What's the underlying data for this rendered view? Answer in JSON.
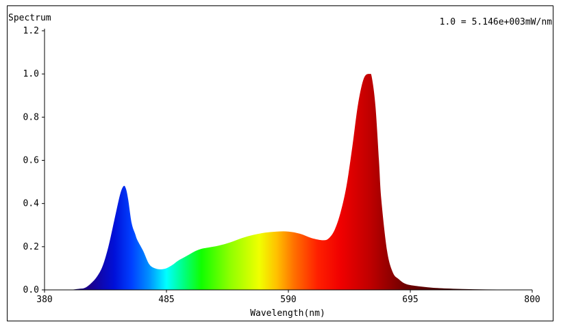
{
  "chart_data": {
    "type": "area",
    "title": "Spectrum",
    "annotation": "1.0 = 5.146e+003mW/nm",
    "xlabel": "Wavelength(nm)",
    "ylabel": "",
    "xlim": [
      380,
      800
    ],
    "ylim": [
      0,
      1.2
    ],
    "x_ticks": [
      380,
      485,
      590,
      695,
      800
    ],
    "y_ticks": [
      "0.0",
      "0.2",
      "0.4",
      "0.6",
      "0.8",
      "1.0",
      "1.2"
    ],
    "fill": "visible-spectrum gradient",
    "grid": false,
    "series": [
      {
        "x": [
          380,
          400,
          410,
          415,
          420,
          425,
          430,
          435,
          440,
          445,
          448,
          450,
          452,
          455,
          458,
          460,
          465,
          470,
          475,
          480,
          485,
          490,
          495,
          500,
          505,
          510,
          515,
          520,
          530,
          540,
          550,
          560,
          570,
          580,
          590,
          600,
          610,
          620,
          625,
          630,
          635,
          640,
          645,
          650,
          655,
          660,
          662,
          665,
          668,
          670,
          675,
          680,
          685,
          690,
          695,
          700,
          710,
          720,
          740,
          760,
          780,
          800
        ],
        "values": [
          0,
          0,
          0.005,
          0.01,
          0.03,
          0.06,
          0.11,
          0.2,
          0.32,
          0.44,
          0.48,
          0.47,
          0.42,
          0.31,
          0.26,
          0.23,
          0.18,
          0.12,
          0.1,
          0.095,
          0.1,
          0.115,
          0.135,
          0.15,
          0.165,
          0.18,
          0.19,
          0.195,
          0.205,
          0.22,
          0.24,
          0.255,
          0.265,
          0.27,
          0.27,
          0.26,
          0.24,
          0.23,
          0.24,
          0.28,
          0.36,
          0.48,
          0.66,
          0.86,
          0.98,
          1.0,
          0.98,
          0.85,
          0.6,
          0.42,
          0.18,
          0.08,
          0.05,
          0.03,
          0.022,
          0.018,
          0.012,
          0.008,
          0.004,
          0.002,
          0.001,
          0
        ]
      }
    ]
  }
}
